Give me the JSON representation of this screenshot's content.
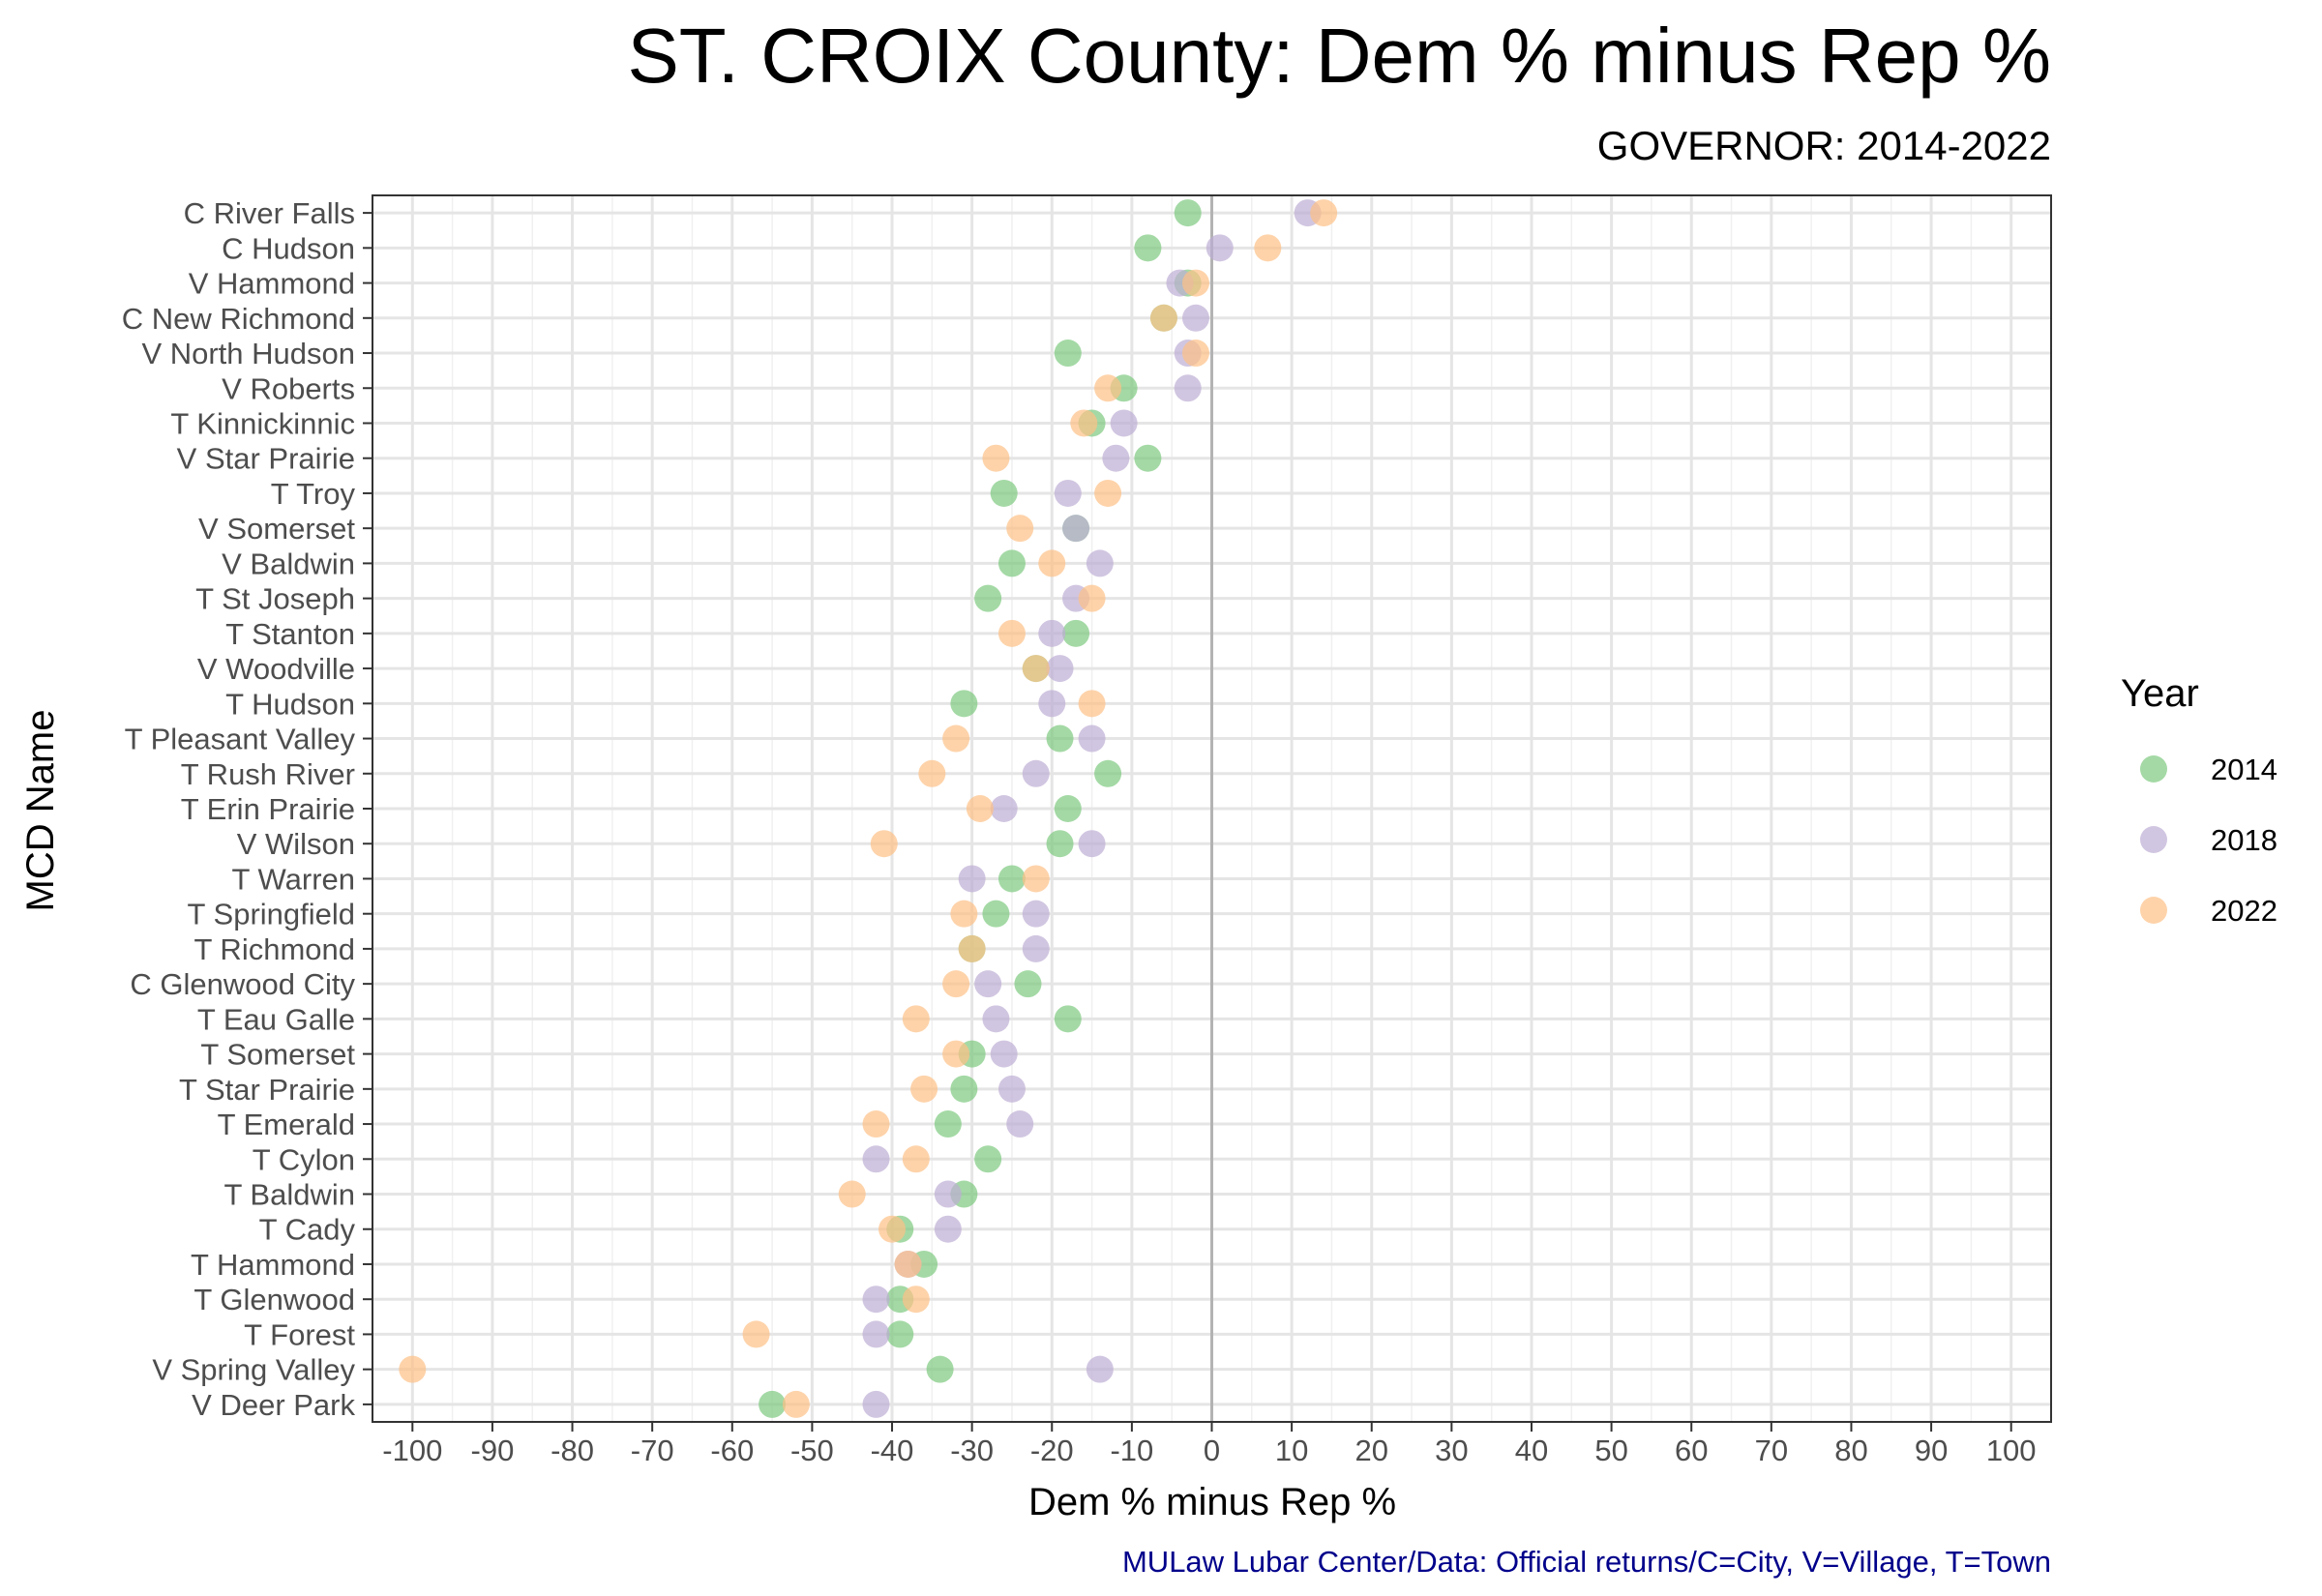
{
  "chart_data": {
    "type": "scatter",
    "title": "ST. CROIX County: Dem % minus Rep %",
    "subtitle": "GOVERNOR: 2014-2022",
    "xlabel": "Dem % minus Rep %",
    "ylabel": "MCD Name",
    "caption": "MULaw Lubar Center/Data: Official returns/C=City, V=Village, T=Town",
    "xlim": [
      -105,
      105
    ],
    "x_ticks": [
      -100,
      -90,
      -80,
      -70,
      -60,
      -50,
      -40,
      -30,
      -20,
      -10,
      0,
      10,
      20,
      30,
      40,
      50,
      60,
      70,
      80,
      90,
      100
    ],
    "grid": true,
    "reference_line_x": 0,
    "legend": {
      "title": "Year",
      "position": "right"
    },
    "categories": [
      "C River Falls",
      "C Hudson",
      "V Hammond",
      "C New Richmond",
      "V North Hudson",
      "V Roberts",
      "T Kinnickinnic",
      "V Star Prairie",
      "T Troy",
      "V Somerset",
      "V Baldwin",
      "T St Joseph",
      "T Stanton",
      "V Woodville",
      "T Hudson",
      "T Pleasant Valley",
      "T Rush River",
      "T Erin Prairie",
      "V Wilson",
      "T Warren",
      "T Springfield",
      "T Richmond",
      "C Glenwood City",
      "T Eau Galle",
      "T Somerset",
      "T Star Prairie",
      "T Emerald",
      "T Cylon",
      "T Baldwin",
      "T Cady",
      "T Hammond",
      "T Glenwood",
      "T Forest",
      "V Spring Valley",
      "V Deer Park"
    ],
    "series": [
      {
        "name": "2014",
        "color": "#7dc97f",
        "values": [
          -3,
          -8,
          -3,
          -6,
          -18,
          -11,
          -15,
          -8,
          -26,
          -17,
          -25,
          -28,
          -17,
          -22,
          -31,
          -19,
          -13,
          -18,
          -19,
          -25,
          -27,
          -30,
          -23,
          -18,
          -30,
          -31,
          -33,
          -28,
          -31,
          -39,
          -36,
          -39,
          -39,
          -34,
          -55
        ]
      },
      {
        "name": "2018",
        "color": "#beaed4",
        "values": [
          12,
          1,
          -4,
          -2,
          -3,
          -3,
          -11,
          -12,
          -18,
          -17,
          -14,
          -17,
          -20,
          -19,
          -20,
          -15,
          -22,
          -26,
          -15,
          -30,
          -22,
          -22,
          -28,
          -27,
          -26,
          -25,
          -24,
          -42,
          -33,
          -33,
          -38,
          -42,
          -42,
          -14,
          -42
        ]
      },
      {
        "name": "2022",
        "color": "#fdc086",
        "values": [
          14,
          7,
          -2,
          -6,
          -2,
          -13,
          -16,
          -27,
          -13,
          -24,
          -20,
          -15,
          -25,
          -22,
          -15,
          -32,
          -35,
          -29,
          -41,
          -22,
          -31,
          -30,
          -32,
          -37,
          -32,
          -36,
          -42,
          -37,
          -45,
          -40,
          -38,
          -37,
          -57,
          -100,
          -52
        ]
      }
    ]
  }
}
